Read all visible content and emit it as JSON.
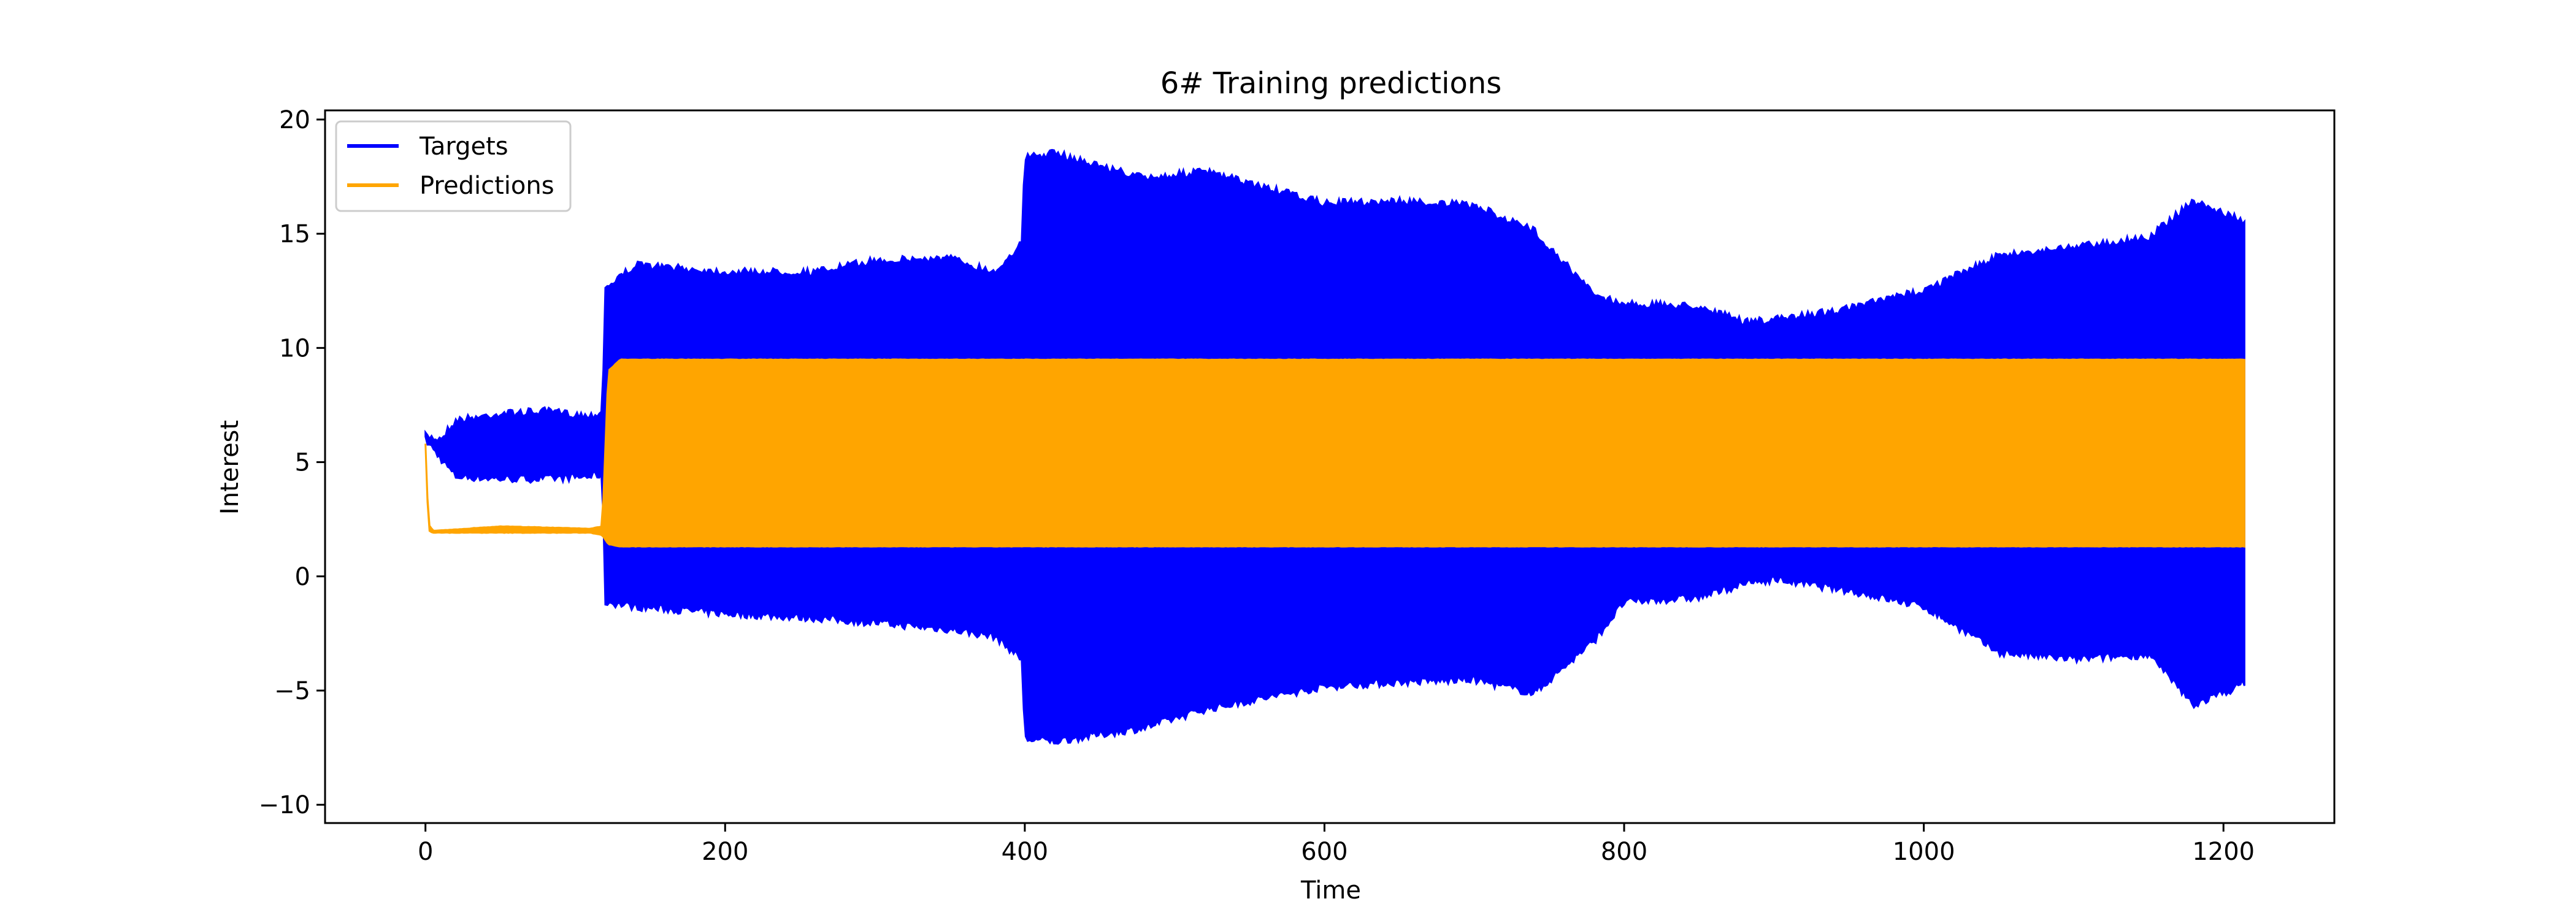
{
  "chart_data": {
    "type": "line",
    "title": "6# Training predictions",
    "xlabel": "Time",
    "ylabel": "Interest",
    "xlim": [
      -67,
      1274
    ],
    "ylim": [
      -10.8,
      20.4
    ],
    "xticks": [
      0,
      200,
      400,
      600,
      800,
      1000,
      1200
    ],
    "yticks": [
      -10,
      -5,
      0,
      5,
      10,
      15,
      20
    ],
    "grid": false,
    "legend": {
      "position": "top-left",
      "entries": [
        "Targets",
        "Predictions"
      ]
    },
    "series": [
      {
        "name": "Targets",
        "color": "#0000ff",
        "style": "dense oscillating band",
        "x": [
          0,
          10,
          20,
          50,
          80,
          110,
          118,
          120,
          140,
          200,
          260,
          300,
          350,
          380,
          398,
          400,
          420,
          480,
          520,
          600,
          650,
          700,
          740,
          780,
          800,
          850,
          880,
          900,
          950,
          1000,
          1050,
          1100,
          1150,
          1180,
          1210,
          1214
        ],
        "upper": [
          6.3,
          6.2,
          7.0,
          7.3,
          7.4,
          7.2,
          7.4,
          12.8,
          13.8,
          13.5,
          13.5,
          14.0,
          14.1,
          13.5,
          14.8,
          18.5,
          18.7,
          17.6,
          17.9,
          16.5,
          16.6,
          16.4,
          15.3,
          12.5,
          12.1,
          12.0,
          11.3,
          11.4,
          11.9,
          12.7,
          14.2,
          14.6,
          15.0,
          16.6,
          15.8,
          15.7
        ],
        "lower": [
          5.8,
          5.0,
          4.2,
          4.1,
          4.1,
          4.2,
          4.3,
          -1.3,
          -1.5,
          -1.8,
          -2.0,
          -2.2,
          -2.5,
          -2.8,
          -3.8,
          -7.3,
          -7.4,
          -6.8,
          -6.0,
          -5.0,
          -4.8,
          -4.7,
          -5.3,
          -3.0,
          -1.3,
          -1.1,
          -0.5,
          -0.3,
          -0.8,
          -1.5,
          -3.5,
          -3.8,
          -3.6,
          -5.8,
          -5.0,
          -4.8
        ]
      },
      {
        "name": "Predictions",
        "color": "#ffa500",
        "style": "dense oscillating band",
        "x": [
          0,
          2,
          5,
          50,
          110,
          118,
          122,
          130,
          200,
          400,
          600,
          800,
          900,
          1000,
          1100,
          1214
        ],
        "upper": [
          5.8,
          2.3,
          2.0,
          2.2,
          2.1,
          2.2,
          9.0,
          9.5,
          9.5,
          9.5,
          9.5,
          9.5,
          9.5,
          9.5,
          9.5,
          9.5
        ],
        "lower": [
          5.8,
          2.0,
          1.9,
          1.9,
          1.9,
          1.8,
          1.4,
          1.3,
          1.3,
          1.3,
          1.3,
          1.3,
          1.3,
          1.3,
          1.3,
          1.3
        ]
      }
    ]
  }
}
